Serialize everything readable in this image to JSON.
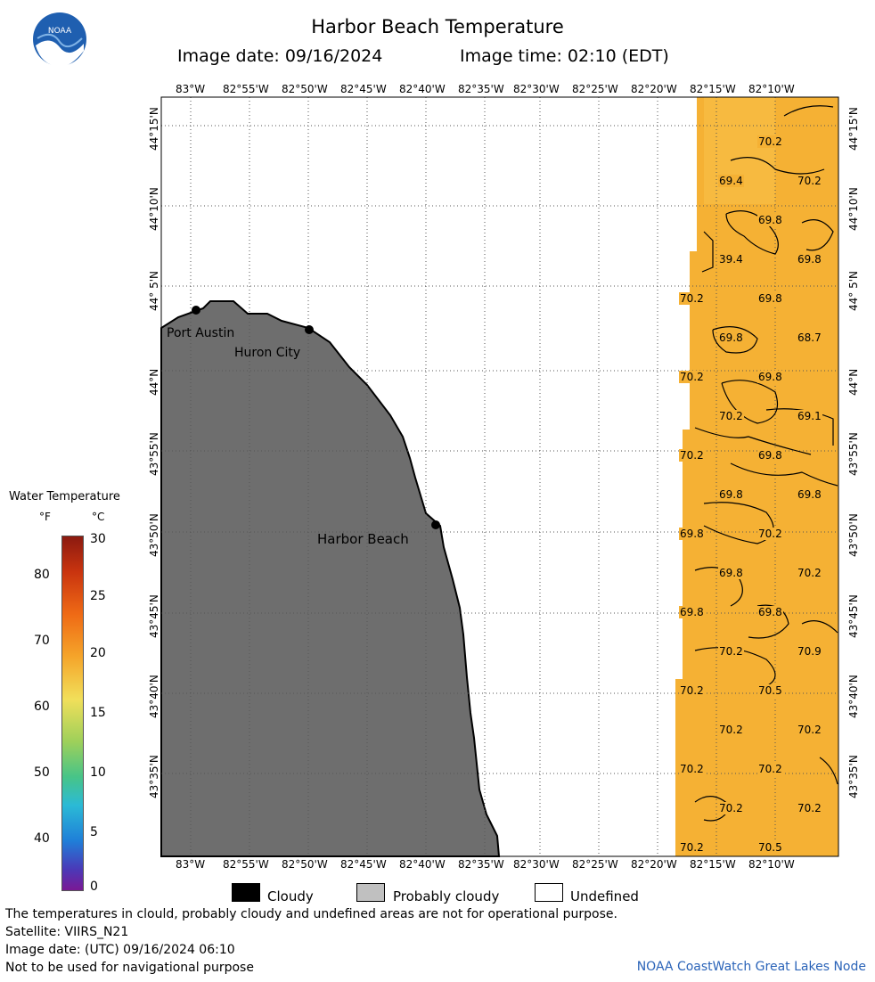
{
  "title": "Harbor Beach Temperature",
  "image_date": "Image date: 09/16/2024",
  "image_time": "Image time: 02:10 (EDT)",
  "logo_text": "NOAA",
  "lon_ticks": [
    "83°W",
    "82°55'W",
    "82°50'W",
    "82°45'W",
    "82°40'W",
    "82°35'W",
    "82°30'W",
    "82°25'W",
    "82°20'W",
    "82°15'W",
    "82°10'W"
  ],
  "lat_ticks": [
    "44°15'N",
    "44°10'N",
    "44° 5'N",
    "44°N",
    "43°55'N",
    "43°50'N",
    "43°45'N",
    "43°40'N",
    "43°35'N"
  ],
  "cities": [
    {
      "name": "Port Austin"
    },
    {
      "name": "Huron City"
    },
    {
      "name": "Harbor Beach"
    }
  ],
  "temp_labels": [
    "70.2",
    "69.4",
    "70.2",
    "69.8",
    "39.4",
    "69.8",
    "70.2",
    "69.8",
    "69.8",
    "68.7",
    "70.2",
    "69.8",
    "70.2",
    "69.1",
    "70.2",
    "69.8",
    "69.8",
    "69.8",
    "69.8",
    "70.2",
    "69.8",
    "70.2",
    "69.8",
    "69.8",
    "70.2",
    "70.9",
    "70.2",
    "70.5",
    "70.2",
    "70.2",
    "70.2",
    "70.2",
    "70.2",
    "70.2",
    "70.2",
    "70.5"
  ],
  "colorbar": {
    "title": "Water Temperature",
    "unit_f": "°F",
    "unit_c": "°C",
    "f_labels": [
      "80",
      "70",
      "60",
      "50",
      "40"
    ],
    "c_labels": [
      "30",
      "25",
      "20",
      "15",
      "10",
      "5",
      "0"
    ]
  },
  "legend": {
    "cloudy": "Cloudy",
    "probably_cloudy": "Probably cloudy",
    "undefined": "Undefined"
  },
  "footer": {
    "note": "The temperatures in clould, probably cloudy and undefined areas are not for operational purpose.",
    "satellite": "Satellite: VIIRS_N21",
    "utc_date": "Image date: (UTC) 09/16/2024  06:10",
    "nav": "Not to be used for navigational purpose",
    "credit": "NOAA CoastWatch Great Lakes Node"
  },
  "colors": {
    "land": "#6e6e6e",
    "water": "#f5b134",
    "water_light": "#f8c04a",
    "cloudy": "#000000",
    "probably_cloudy": "#c0c0c0",
    "credit": "#2a63b8"
  }
}
